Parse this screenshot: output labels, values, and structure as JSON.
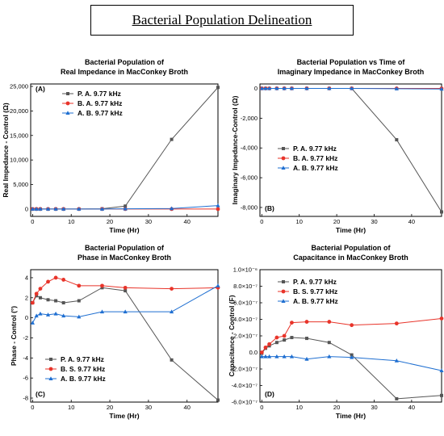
{
  "main_title": "Bacterial Population Delineation",
  "chart_data": [
    {
      "type": "line",
      "id": "A",
      "panel_letter": "(A)",
      "title": "Bacterial Population of",
      "subtitle": "Real Impedance in MacConkey Broth",
      "xlabel": "Time (Hr)",
      "ylabel": "Real Impedance - Control (Ω)",
      "xlim": [
        -0.5,
        48
      ],
      "ylim": [
        -1500,
        25500
      ],
      "x_ticks": [
        0,
        10,
        20,
        30,
        40
      ],
      "y_ticks": [
        0,
        5000,
        10000,
        15000,
        20000,
        25000
      ],
      "y_tick_labels": [
        "0",
        "5,000",
        "10,000",
        "15,000",
        "20,000",
        "25,000"
      ],
      "legend_position": "top-left",
      "series": [
        {
          "name": "P. A. 9.77 kHz",
          "color": "#555555",
          "marker": "square",
          "x": [
            0,
            1,
            2,
            4,
            6,
            8,
            12,
            18,
            24,
            36,
            48
          ],
          "y": [
            0,
            0,
            0,
            0,
            0,
            0,
            0,
            50,
            600,
            14200,
            24800
          ]
        },
        {
          "name": "B. A. 9.77 kHz",
          "color": "#e8342a",
          "marker": "circle",
          "x": [
            0,
            1,
            2,
            4,
            6,
            8,
            12,
            18,
            24,
            36,
            48
          ],
          "y": [
            0,
            0,
            0,
            0,
            0,
            0,
            0,
            0,
            0,
            0,
            0
          ]
        },
        {
          "name": "A. B. 9.77 kHz",
          "color": "#1f6fd1",
          "marker": "triangle",
          "x": [
            0,
            1,
            2,
            4,
            6,
            8,
            12,
            18,
            24,
            36,
            48
          ],
          "y": [
            0,
            0,
            0,
            0,
            0,
            0,
            0,
            0,
            50,
            100,
            700
          ]
        }
      ]
    },
    {
      "type": "line",
      "id": "B",
      "panel_letter": "(B)",
      "title": "Bacterial Population vs Time of",
      "subtitle": "Imaginary Impedance in MacConkey Broth",
      "xlabel": "Time (Hr)",
      "ylabel": "Imaginary Impedance-Control (Ω)",
      "xlim": [
        -0.5,
        48
      ],
      "ylim": [
        -8600,
        300
      ],
      "x_ticks": [
        0,
        10,
        20,
        30,
        40
      ],
      "y_ticks": [
        0,
        -2000,
        -4000,
        -6000,
        -8000
      ],
      "y_tick_labels": [
        "0",
        "-2,000",
        "-4,000",
        "-6,000",
        "-8,000"
      ],
      "legend_position": "center-left",
      "series": [
        {
          "name": "P. A. 9.77 kHz",
          "color": "#555555",
          "marker": "square",
          "x": [
            0,
            1,
            2,
            4,
            6,
            8,
            12,
            18,
            24,
            36,
            48
          ],
          "y": [
            0,
            0,
            0,
            0,
            0,
            0,
            0,
            0,
            0,
            -3450,
            -8300
          ]
        },
        {
          "name": "B. A. 9.77 kHz",
          "color": "#e8342a",
          "marker": "circle",
          "x": [
            0,
            1,
            2,
            4,
            6,
            8,
            12,
            18,
            24,
            36,
            48
          ],
          "y": [
            0,
            0,
            0,
            0,
            0,
            0,
            0,
            0,
            0,
            0,
            0
          ]
        },
        {
          "name": "A. B. 9.77 kHz",
          "color": "#1f6fd1",
          "marker": "triangle",
          "x": [
            0,
            1,
            2,
            4,
            6,
            8,
            12,
            18,
            24,
            36,
            48
          ],
          "y": [
            0,
            0,
            0,
            0,
            0,
            0,
            0,
            0,
            0,
            -20,
            -40
          ]
        }
      ]
    },
    {
      "type": "line",
      "id": "C",
      "panel_letter": "(C)",
      "title": "Bacterial Population of",
      "subtitle": "Phase in MacConkey Broth",
      "xlabel": "Time (Hr)",
      "ylabel": "Phase - Control (°)",
      "xlim": [
        -0.5,
        48
      ],
      "ylim": [
        -8.4,
        4.8
      ],
      "x_ticks": [
        0,
        10,
        20,
        30,
        40
      ],
      "y_ticks": [
        4,
        2,
        0,
        -2,
        -4,
        -6,
        -8
      ],
      "y_tick_labels": [
        "4",
        "2",
        "0",
        "-2",
        "-4",
        "-6",
        "-8"
      ],
      "legend_position": "bottom-left",
      "series": [
        {
          "name": "P. A. 9.77 kHz",
          "color": "#555555",
          "marker": "square",
          "x": [
            0,
            1,
            2,
            4,
            6,
            8,
            12,
            18,
            24,
            36,
            48
          ],
          "y": [
            1.5,
            2.2,
            2.0,
            1.8,
            1.7,
            1.5,
            1.7,
            3.0,
            2.7,
            -4.2,
            -8.2
          ]
        },
        {
          "name": "B. S. 9.77 kHz",
          "color": "#e8342a",
          "marker": "circle",
          "x": [
            0,
            1,
            2,
            4,
            6,
            8,
            12,
            18,
            24,
            36,
            48
          ],
          "y": [
            1.5,
            2.4,
            2.9,
            3.6,
            4.0,
            3.8,
            3.2,
            3.2,
            3.0,
            2.9,
            3.0
          ]
        },
        {
          "name": "A. B. 9.77 kHz",
          "color": "#1f6fd1",
          "marker": "triangle",
          "x": [
            0,
            1,
            2,
            4,
            6,
            8,
            12,
            18,
            24,
            36,
            48
          ],
          "y": [
            -0.5,
            0.2,
            0.4,
            0.3,
            0.4,
            0.2,
            0.1,
            0.6,
            0.6,
            0.6,
            3.2
          ]
        }
      ]
    },
    {
      "type": "line",
      "id": "D",
      "panel_letter": "(D)",
      "title": "Bacterial Population of",
      "subtitle": "Capacitance in MacConkey Broth",
      "xlabel": "Time (Hr)",
      "ylabel": "Capacitance - Control (F)",
      "xlim": [
        -0.5,
        48
      ],
      "ylim": [
        -6e-07,
        1e-06
      ],
      "x_ticks": [
        0,
        10,
        20,
        30,
        40
      ],
      "y_ticks": [
        1e-06,
        8e-07,
        6e-07,
        4e-07,
        2e-07,
        0,
        -2e-07,
        -4e-07,
        -6e-07
      ],
      "y_tick_labels": [
        "1.0×10⁻⁶",
        "8.0×10⁻⁷",
        "6.0×10⁻⁷",
        "4.0×10⁻⁷",
        "2.0×10⁻⁷",
        "0.0",
        "-2.0×10⁻⁷",
        "-4.0×10⁻⁷",
        "-6.0×10⁻⁷"
      ],
      "legend_position": "top-left",
      "series": [
        {
          "name": "P. A. 9.77 kHz",
          "color": "#555555",
          "marker": "square",
          "x": [
            0,
            1,
            2,
            4,
            6,
            8,
            12,
            18,
            24,
            36,
            48
          ],
          "y": [
            -1e-08,
            5e-08,
            8e-08,
            1.2e-07,
            1.5e-07,
            1.8e-07,
            1.7e-07,
            1.2e-07,
            -3e-08,
            -5.6e-07,
            -5.2e-07
          ]
        },
        {
          "name": "B. S. 9.77 kHz",
          "color": "#e8342a",
          "marker": "circle",
          "x": [
            0,
            1,
            2,
            4,
            6,
            8,
            12,
            18,
            24,
            36,
            48
          ],
          "y": [
            0,
            6e-08,
            1e-07,
            1.8e-07,
            2e-07,
            3.6e-07,
            3.7e-07,
            3.7e-07,
            3.3e-07,
            3.5e-07,
            4.1e-07
          ]
        },
        {
          "name": "A. B. 9.77 kHz",
          "color": "#1f6fd1",
          "marker": "triangle",
          "x": [
            0,
            1,
            2,
            4,
            6,
            8,
            12,
            18,
            24,
            36,
            48
          ],
          "y": [
            -5e-08,
            -5e-08,
            -5e-08,
            -5e-08,
            -5e-08,
            -5e-08,
            -8e-08,
            -5e-08,
            -6e-08,
            -1e-07,
            -2.2e-07
          ]
        }
      ]
    }
  ]
}
